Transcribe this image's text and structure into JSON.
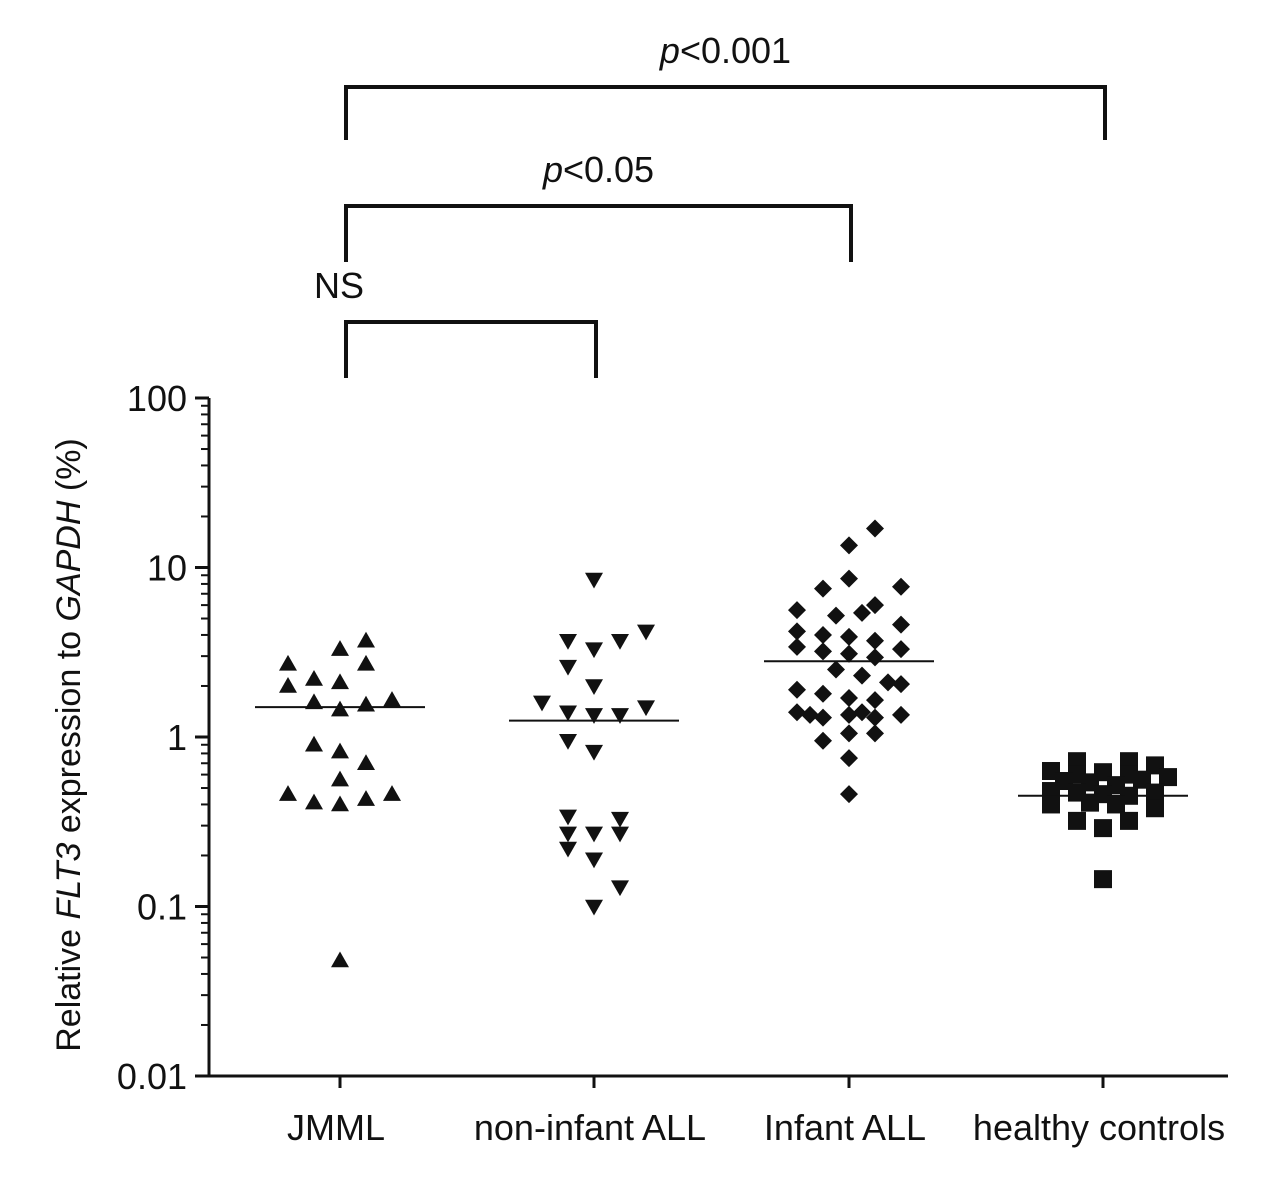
{
  "chart_data": {
    "type": "scatter",
    "subtype": "dot-plot-log",
    "ylabel_parts": [
      {
        "text": "Relative ",
        "italic": false
      },
      {
        "text": "FLT3",
        "italic": true
      },
      {
        "text": " expression to ",
        "italic": false
      },
      {
        "text": "GAPDH",
        "italic": true
      },
      {
        "text": " (%)",
        "italic": false
      }
    ],
    "yscale": "log",
    "ylim": [
      0.01,
      100
    ],
    "yticks": [
      {
        "value": 100,
        "label": "100"
      },
      {
        "value": 10,
        "label": "10"
      },
      {
        "value": 1,
        "label": "1"
      },
      {
        "value": 0.1,
        "label": "0.1"
      },
      {
        "value": 0.01,
        "label": "0.01"
      }
    ],
    "categories": [
      "JMML",
      "non-infant ALL",
      "Infant ALL",
      "healthy controls"
    ],
    "series": [
      {
        "name": "JMML",
        "marker": "triangle-up",
        "median": 1.5,
        "points": [
          {
            "offset": -2,
            "y": 2.7
          },
          {
            "offset": -1,
            "y": 2.2
          },
          {
            "offset": 0,
            "y": 3.3
          },
          {
            "offset": 1,
            "y": 3.7
          },
          {
            "offset": -2,
            "y": 2.0
          },
          {
            "offset": 0,
            "y": 2.1
          },
          {
            "offset": 1,
            "y": 2.7
          },
          {
            "offset": -1,
            "y": 1.6
          },
          {
            "offset": 0,
            "y": 1.45
          },
          {
            "offset": 1,
            "y": 1.55
          },
          {
            "offset": 2,
            "y": 1.65
          },
          {
            "offset": -1,
            "y": 0.9
          },
          {
            "offset": 0,
            "y": 0.82
          },
          {
            "offset": 1,
            "y": 0.7
          },
          {
            "offset": 0,
            "y": 0.56
          },
          {
            "offset": -2,
            "y": 0.46
          },
          {
            "offset": -1,
            "y": 0.41
          },
          {
            "offset": 0,
            "y": 0.4
          },
          {
            "offset": 1,
            "y": 0.43
          },
          {
            "offset": 2,
            "y": 0.46
          },
          {
            "offset": 0,
            "y": 0.048
          }
        ]
      },
      {
        "name": "non-infant ALL",
        "marker": "triangle-down",
        "median": 1.25,
        "points": [
          {
            "offset": 0,
            "y": 8.5
          },
          {
            "offset": -1,
            "y": 3.7
          },
          {
            "offset": 0,
            "y": 3.3
          },
          {
            "offset": 1,
            "y": 3.7
          },
          {
            "offset": 2,
            "y": 4.2
          },
          {
            "offset": -1,
            "y": 2.6
          },
          {
            "offset": 0,
            "y": 2.0
          },
          {
            "offset": -2,
            "y": 1.6
          },
          {
            "offset": -1,
            "y": 1.4
          },
          {
            "offset": 0,
            "y": 1.35
          },
          {
            "offset": 1,
            "y": 1.35
          },
          {
            "offset": 2,
            "y": 1.5
          },
          {
            "offset": -1,
            "y": 0.95
          },
          {
            "offset": 0,
            "y": 0.82
          },
          {
            "offset": -1,
            "y": 0.34
          },
          {
            "offset": 1,
            "y": 0.33
          },
          {
            "offset": -1,
            "y": 0.27
          },
          {
            "offset": 0,
            "y": 0.27
          },
          {
            "offset": 1,
            "y": 0.27
          },
          {
            "offset": -1,
            "y": 0.22
          },
          {
            "offset": 0,
            "y": 0.19
          },
          {
            "offset": 1,
            "y": 0.13
          },
          {
            "offset": 0,
            "y": 0.1
          }
        ]
      },
      {
        "name": "Infant ALL",
        "marker": "diamond",
        "median": 2.8,
        "points": [
          {
            "offset": 1,
            "y": 17.0
          },
          {
            "offset": 0,
            "y": 13.5
          },
          {
            "offset": 0,
            "y": 8.6
          },
          {
            "offset": -1,
            "y": 7.5
          },
          {
            "offset": 2,
            "y": 7.7
          },
          {
            "offset": 1,
            "y": 6.0
          },
          {
            "offset": -2,
            "y": 5.6
          },
          {
            "offset": 0.5,
            "y": 5.4
          },
          {
            "offset": -0.5,
            "y": 5.2
          },
          {
            "offset": 2,
            "y": 4.6
          },
          {
            "offset": -2,
            "y": 4.2
          },
          {
            "offset": -1,
            "y": 4.0
          },
          {
            "offset": 0,
            "y": 3.9
          },
          {
            "offset": 1,
            "y": 3.7
          },
          {
            "offset": -2,
            "y": 3.4
          },
          {
            "offset": -1,
            "y": 3.2
          },
          {
            "offset": 0,
            "y": 3.1
          },
          {
            "offset": 1,
            "y": 2.95
          },
          {
            "offset": 2,
            "y": 3.3
          },
          {
            "offset": -0.5,
            "y": 2.5
          },
          {
            "offset": 0.5,
            "y": 2.3
          },
          {
            "offset": 1.5,
            "y": 2.1
          },
          {
            "offset": 2,
            "y": 2.05
          },
          {
            "offset": -2,
            "y": 1.9
          },
          {
            "offset": -1,
            "y": 1.8
          },
          {
            "offset": 0,
            "y": 1.7
          },
          {
            "offset": 1,
            "y": 1.65
          },
          {
            "offset": -2,
            "y": 1.4
          },
          {
            "offset": -1.5,
            "y": 1.35
          },
          {
            "offset": -1,
            "y": 1.3
          },
          {
            "offset": 0,
            "y": 1.35
          },
          {
            "offset": 1,
            "y": 1.3
          },
          {
            "offset": 2,
            "y": 1.35
          },
          {
            "offset": 0.5,
            "y": 1.4
          },
          {
            "offset": 0,
            "y": 1.05
          },
          {
            "offset": 1,
            "y": 1.05
          },
          {
            "offset": -1,
            "y": 0.95
          },
          {
            "offset": 0,
            "y": 0.75
          },
          {
            "offset": 0,
            "y": 0.46
          }
        ]
      },
      {
        "name": "healthy controls",
        "marker": "square",
        "median": 0.45,
        "points": [
          {
            "offset": -1,
            "y": 0.72
          },
          {
            "offset": 1,
            "y": 0.72
          },
          {
            "offset": 2,
            "y": 0.68
          },
          {
            "offset": -2,
            "y": 0.63
          },
          {
            "offset": -1,
            "y": 0.6
          },
          {
            "offset": 0,
            "y": 0.62
          },
          {
            "offset": 1,
            "y": 0.6
          },
          {
            "offset": 2.5,
            "y": 0.58
          },
          {
            "offset": -1.5,
            "y": 0.55
          },
          {
            "offset": -0.5,
            "y": 0.54
          },
          {
            "offset": 0.5,
            "y": 0.52
          },
          {
            "offset": 1.5,
            "y": 0.56
          },
          {
            "offset": -2,
            "y": 0.48
          },
          {
            "offset": -1,
            "y": 0.47
          },
          {
            "offset": 0,
            "y": 0.46
          },
          {
            "offset": 1,
            "y": 0.45
          },
          {
            "offset": 2,
            "y": 0.47
          },
          {
            "offset": -2,
            "y": 0.4
          },
          {
            "offset": -0.5,
            "y": 0.41
          },
          {
            "offset": 0.5,
            "y": 0.4
          },
          {
            "offset": 2,
            "y": 0.38
          },
          {
            "offset": -1,
            "y": 0.32
          },
          {
            "offset": 1,
            "y": 0.32
          },
          {
            "offset": 0,
            "y": 0.29
          },
          {
            "offset": 0,
            "y": 0.145
          }
        ]
      }
    ],
    "significance": [
      {
        "from": "JMML",
        "to": "non-infant ALL",
        "label": "NS",
        "level": 1
      },
      {
        "from": "JMML",
        "to": "Infant ALL",
        "label_parts": [
          {
            "text": "p",
            "italic": true
          },
          {
            "text": "<0.05",
            "italic": false
          }
        ],
        "level": 2
      },
      {
        "from": "JMML",
        "to": "healthy controls",
        "label_parts": [
          {
            "text": "p",
            "italic": true
          },
          {
            "text": "<0.001",
            "italic": false
          }
        ],
        "level": 3
      }
    ],
    "grid": false,
    "legend": "none"
  }
}
